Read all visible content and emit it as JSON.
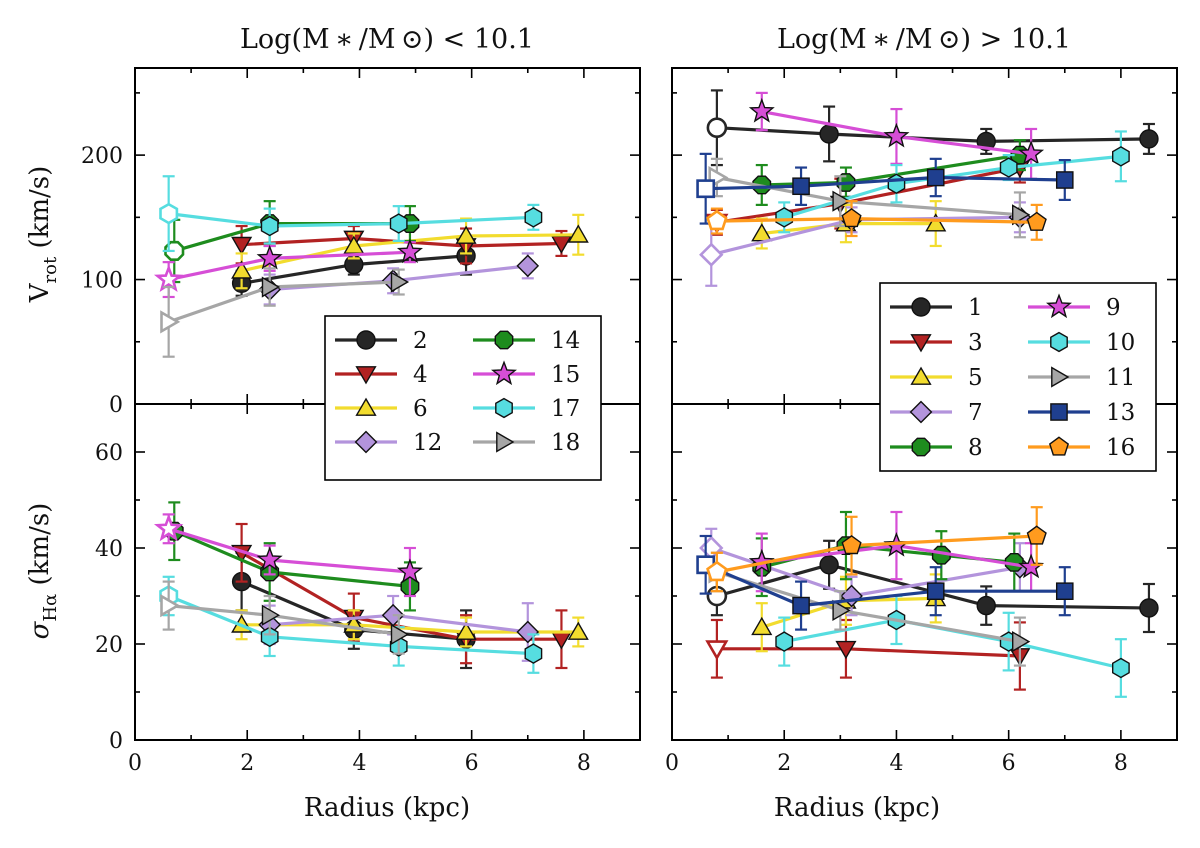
{
  "chart_data": {
    "type": "scatter",
    "panel_titles": {
      "low": "Log(M ∗ /M ⊙) < 10.1",
      "high": "Log(M ∗ /M ⊙) > 10.1"
    },
    "xlabel": "Radius (kpc)",
    "ylabel_top": {
      "main": "V",
      "sub": "rot",
      "unit": " (km/s)"
    },
    "ylabel_bottom": {
      "main": "σ",
      "sub": "Hα",
      "unit": " (km/s)"
    },
    "xlim_left": [
      0,
      9
    ],
    "xlim_right": [
      0,
      9
    ],
    "ylim_top": [
      0,
      270
    ],
    "ylim_bottom": [
      0,
      70
    ],
    "xticks": [
      0,
      2,
      4,
      6,
      8
    ],
    "yticks_top": [
      0,
      100,
      200
    ],
    "yticks_bottom": [
      0,
      20,
      40,
      60
    ],
    "legend_low": [
      "2",
      "4",
      "6",
      "12",
      "14",
      "15",
      "17",
      "18"
    ],
    "legend_high": [
      "1",
      "3",
      "5",
      "7",
      "8",
      "9",
      "10",
      "11",
      "13",
      "16"
    ],
    "colors": {
      "1": "#262626",
      "2": "#262626",
      "3": "#b22222",
      "4": "#b22222",
      "5": "#f2dc2e",
      "6": "#f2dc2e",
      "7": "#b394dc",
      "12": "#b394dc",
      "8": "#1e8c1e",
      "14": "#1e8c1e",
      "9": "#d64ed6",
      "15": "#d64ed6",
      "10": "#56dde0",
      "17": "#56dde0",
      "11": "#a6a6a6",
      "18": "#a6a6a6",
      "13": "#1f3f8f",
      "16": "#ff9b1e"
    },
    "markers": {
      "1": "circle",
      "2": "circle",
      "8": "octagon",
      "14": "octagon",
      "3": "tri-down",
      "4": "tri-down",
      "5": "tri-up",
      "6": "tri-up",
      "7": "diamond",
      "12": "diamond",
      "9": "star",
      "15": "star",
      "10": "hexagon",
      "17": "hexagon",
      "11": "tri-right",
      "18": "tri-right",
      "13": "square",
      "16": "pentagon"
    },
    "series": [
      {
        "name": "1",
        "panel": "high",
        "vrot": [
          [
            0.8,
            222,
            30,
            true
          ],
          [
            2.8,
            217,
            22
          ],
          [
            5.6,
            211,
            10
          ],
          [
            8.5,
            213,
            12
          ]
        ],
        "sigma": [
          [
            0.8,
            30,
            4,
            true
          ],
          [
            2.8,
            36.5,
            5
          ],
          [
            5.6,
            28,
            4
          ],
          [
            8.5,
            27.5,
            5
          ]
        ]
      },
      {
        "name": "2",
        "panel": "low",
        "vrot": [
          [
            1.9,
            97,
            10
          ],
          [
            3.9,
            112,
            8
          ],
          [
            5.9,
            119,
            15
          ]
        ],
        "sigma": [
          [
            1.9,
            33,
            6
          ],
          [
            3.9,
            23,
            4
          ],
          [
            5.9,
            21,
            6
          ]
        ]
      },
      {
        "name": "3",
        "panel": "high",
        "vrot": [
          [
            0.8,
            146,
            10,
            true
          ],
          [
            3.0,
            161,
            20
          ],
          [
            6.2,
            190,
            12
          ]
        ],
        "sigma": [
          [
            0.8,
            19,
            6,
            true
          ],
          [
            3.1,
            19,
            6
          ],
          [
            6.2,
            17.5,
            7
          ]
        ]
      },
      {
        "name": "4",
        "panel": "low",
        "vrot": [
          [
            1.9,
            128,
            15
          ],
          [
            3.9,
            133,
            10
          ],
          [
            5.9,
            127,
            14
          ],
          [
            7.6,
            129,
            10
          ]
        ],
        "sigma": [
          [
            1.9,
            39,
            6
          ],
          [
            3.9,
            25.5,
            5
          ],
          [
            5.9,
            21,
            5
          ],
          [
            7.6,
            21,
            6
          ]
        ]
      },
      {
        "name": "5",
        "panel": "high",
        "vrot": [
          [
            1.6,
            137,
            12
          ],
          [
            3.1,
            145,
            15
          ],
          [
            4.7,
            145,
            18
          ]
        ],
        "sigma": [
          [
            1.6,
            23.5,
            5
          ],
          [
            3.1,
            29,
            5
          ],
          [
            4.7,
            29.5,
            5
          ]
        ]
      },
      {
        "name": "6",
        "panel": "low",
        "vrot": [
          [
            1.9,
            107,
            14
          ],
          [
            3.9,
            127,
            10
          ],
          [
            5.9,
            135,
            14
          ],
          [
            7.9,
            136,
            16
          ]
        ],
        "sigma": [
          [
            1.9,
            24,
            3
          ],
          [
            3.9,
            24,
            3
          ],
          [
            5.9,
            22.5,
            3
          ],
          [
            7.9,
            22.5,
            3
          ]
        ]
      },
      {
        "name": "7",
        "panel": "high",
        "vrot": [
          [
            0.7,
            120,
            25,
            true
          ],
          [
            3.2,
            148,
            10
          ],
          [
            6.2,
            150,
            12
          ]
        ],
        "sigma": [
          [
            0.7,
            40,
            4,
            true
          ],
          [
            3.2,
            30,
            4
          ],
          [
            6.2,
            36,
            5
          ]
        ]
      },
      {
        "name": "8",
        "panel": "high",
        "vrot": [
          [
            1.6,
            176,
            16
          ],
          [
            3.1,
            178,
            12
          ],
          [
            6.2,
            200,
            12
          ]
        ],
        "sigma": [
          [
            1.6,
            36,
            6
          ],
          [
            3.1,
            40.5,
            7
          ],
          [
            4.8,
            38.5,
            5
          ],
          [
            6.1,
            37,
            6
          ]
        ]
      },
      {
        "name": "9",
        "panel": "high",
        "vrot": [
          [
            1.6,
            235,
            15
          ],
          [
            4.0,
            215,
            22
          ],
          [
            6.4,
            201,
            20
          ]
        ],
        "sigma": [
          [
            1.6,
            37,
            6
          ],
          [
            4.0,
            40.5,
            7
          ],
          [
            6.4,
            36,
            5
          ]
        ]
      },
      {
        "name": "10",
        "panel": "high",
        "vrot": [
          [
            2.0,
            150,
            12
          ],
          [
            4.0,
            177,
            15
          ],
          [
            6.0,
            190,
            10
          ],
          [
            8.0,
            199,
            20
          ]
        ],
        "sigma": [
          [
            2.0,
            20.5,
            5
          ],
          [
            4.0,
            25,
            5
          ],
          [
            6.0,
            20.5,
            6
          ],
          [
            8.0,
            15,
            6
          ]
        ]
      },
      {
        "name": "11",
        "panel": "high",
        "vrot": [
          [
            0.8,
            182,
            15,
            true
          ],
          [
            3.0,
            163,
            20
          ],
          [
            6.2,
            152,
            18
          ]
        ],
        "sigma": [
          [
            0.8,
            35,
            4,
            true
          ],
          [
            3.0,
            27,
            4
          ],
          [
            6.2,
            20.5,
            5
          ]
        ]
      },
      {
        "name": "12",
        "panel": "low",
        "vrot": [
          [
            2.4,
            92,
            12
          ],
          [
            4.6,
            99,
            10
          ],
          [
            7.0,
            111,
            10
          ]
        ],
        "sigma": [
          [
            2.4,
            24,
            4
          ],
          [
            4.6,
            26,
            4
          ],
          [
            7.0,
            22.5,
            6
          ]
        ]
      },
      {
        "name": "13",
        "panel": "high",
        "vrot": [
          [
            0.6,
            173,
            28,
            true
          ],
          [
            2.3,
            175,
            15
          ],
          [
            4.7,
            182,
            15
          ],
          [
            7.0,
            180,
            16
          ]
        ],
        "sigma": [
          [
            0.6,
            36.5,
            6,
            true
          ],
          [
            2.3,
            28,
            5
          ],
          [
            4.7,
            31,
            5
          ],
          [
            7.0,
            31,
            5
          ]
        ]
      },
      {
        "name": "14",
        "panel": "low",
        "vrot": [
          [
            0.7,
            123,
            25,
            true
          ],
          [
            2.4,
            145,
            18
          ],
          [
            4.9,
            145,
            14
          ]
        ],
        "sigma": [
          [
            0.7,
            43.5,
            6
          ],
          [
            2.4,
            35,
            6
          ],
          [
            4.9,
            32,
            5
          ]
        ]
      },
      {
        "name": "15",
        "panel": "low",
        "vrot": [
          [
            0.6,
            100,
            14,
            true
          ],
          [
            2.4,
            117,
            10
          ],
          [
            4.9,
            122,
            8
          ]
        ],
        "sigma": [
          [
            0.6,
            44,
            3,
            true
          ],
          [
            2.4,
            37.5,
            3
          ],
          [
            4.9,
            35,
            5
          ]
        ]
      },
      {
        "name": "16",
        "panel": "high",
        "vrot": [
          [
            0.8,
            147,
            10,
            true
          ],
          [
            3.2,
            149,
            14
          ],
          [
            6.5,
            146,
            14
          ]
        ],
        "sigma": [
          [
            0.8,
            35,
            4,
            true
          ],
          [
            3.2,
            40.5,
            6
          ],
          [
            6.5,
            42.5,
            6
          ]
        ]
      },
      {
        "name": "17",
        "panel": "low",
        "vrot": [
          [
            0.6,
            153,
            30,
            true
          ],
          [
            2.4,
            143,
            14
          ],
          [
            4.7,
            145,
            14
          ],
          [
            7.1,
            150,
            10
          ]
        ],
        "sigma": [
          [
            0.6,
            30,
            4,
            true
          ],
          [
            2.4,
            21.5,
            4
          ],
          [
            4.7,
            19.5,
            4
          ],
          [
            7.1,
            18,
            4
          ]
        ]
      },
      {
        "name": "18",
        "panel": "low",
        "vrot": [
          [
            0.6,
            66,
            28,
            true
          ],
          [
            2.4,
            94,
            15
          ],
          [
            4.7,
            98,
            10
          ]
        ],
        "sigma": [
          [
            0.6,
            28,
            5,
            true
          ],
          [
            2.4,
            26,
            4
          ],
          [
            4.7,
            22,
            4
          ]
        ]
      }
    ]
  }
}
